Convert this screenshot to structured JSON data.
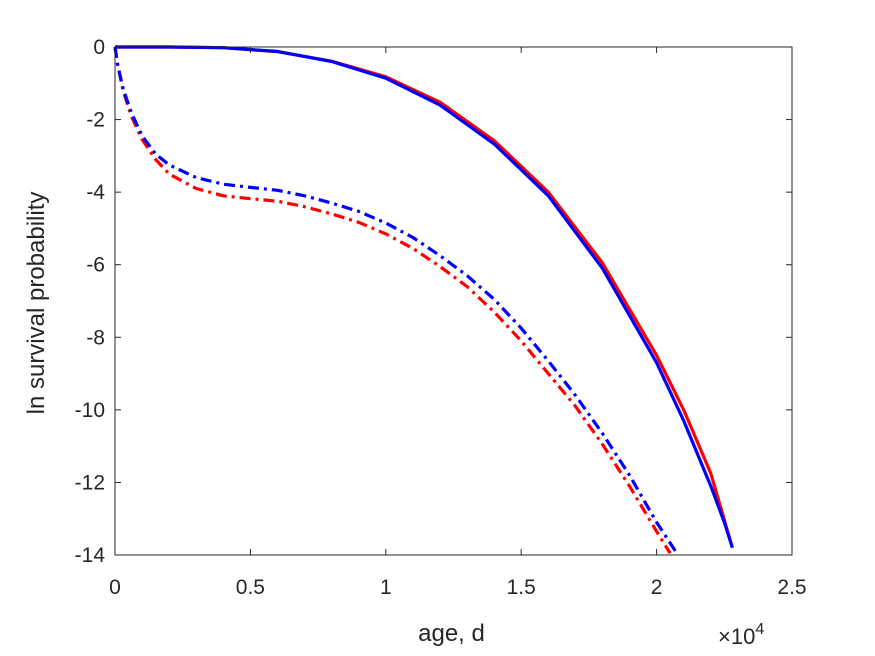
{
  "chart_data": {
    "type": "line",
    "xlabel": "age, d",
    "ylabel": "ln survival probability",
    "x_multiplier": {
      "base": "×10",
      "exponent": "4"
    },
    "xlim": [
      0,
      25000
    ],
    "ylim": [
      -14,
      0
    ],
    "xticks": [
      0,
      5000,
      10000,
      15000,
      20000,
      25000
    ],
    "xtick_labels": [
      "0",
      "0.5",
      "1",
      "1.5",
      "2",
      "2.5"
    ],
    "yticks": [
      0,
      -2,
      -4,
      -6,
      -8,
      -10,
      -12,
      -14
    ],
    "ytick_labels": [
      "0",
      "-2",
      "-4",
      "-6",
      "-8",
      "-10",
      "-12",
      "-14"
    ],
    "grid": false,
    "series": [
      {
        "color": "#ff0000",
        "style": "solid",
        "x": [
          0,
          2000,
          4000,
          6000,
          8000,
          10000,
          12000,
          14000,
          16000,
          18000,
          20000,
          21000,
          22000,
          22800
        ],
        "y": [
          0,
          0,
          -0.02,
          -0.13,
          -0.39,
          -0.82,
          -1.52,
          -2.58,
          -4.0,
          -5.95,
          -8.5,
          -10.0,
          -11.75,
          -13.8
        ]
      },
      {
        "color": "#0000ff",
        "style": "solid",
        "x": [
          0,
          2000,
          4000,
          6000,
          8000,
          10000,
          12000,
          14000,
          16000,
          18000,
          20000,
          21000,
          22000,
          22500,
          22800
        ],
        "y": [
          0,
          0,
          -0.02,
          -0.12,
          -0.4,
          -0.86,
          -1.6,
          -2.67,
          -4.1,
          -6.1,
          -8.7,
          -10.3,
          -12.1,
          -13.1,
          -13.8
        ]
      },
      {
        "color": "#ff0000",
        "style": "dashdot",
        "x": [
          0,
          100,
          300,
          600,
          1000,
          1500,
          2000,
          3000,
          4000,
          5000,
          6000,
          7000,
          8000,
          9000,
          10000,
          11000,
          12000,
          13000,
          14000,
          15000,
          16000,
          17000,
          18000,
          19000,
          20000,
          20500
        ],
        "y": [
          0,
          -0.5,
          -1.2,
          -1.9,
          -2.55,
          -3.1,
          -3.5,
          -3.9,
          -4.1,
          -4.18,
          -4.25,
          -4.4,
          -4.6,
          -4.83,
          -5.15,
          -5.55,
          -6.05,
          -6.6,
          -7.3,
          -8.1,
          -9.0,
          -9.9,
          -10.95,
          -12.1,
          -13.35,
          -13.95
        ]
      },
      {
        "color": "#0000ff",
        "style": "dashdot",
        "x": [
          0,
          100,
          300,
          600,
          1000,
          1500,
          2000,
          3000,
          4000,
          5000,
          6000,
          7000,
          8000,
          9000,
          10000,
          11000,
          12000,
          13000,
          14000,
          15000,
          16000,
          17000,
          18000,
          19000,
          20000,
          20700
        ],
        "y": [
          0,
          -0.5,
          -1.15,
          -1.8,
          -2.45,
          -2.95,
          -3.25,
          -3.6,
          -3.78,
          -3.87,
          -3.95,
          -4.1,
          -4.3,
          -4.53,
          -4.85,
          -5.25,
          -5.75,
          -6.3,
          -6.95,
          -7.75,
          -8.65,
          -9.6,
          -10.65,
          -11.8,
          -13.1,
          -13.9
        ]
      }
    ]
  }
}
